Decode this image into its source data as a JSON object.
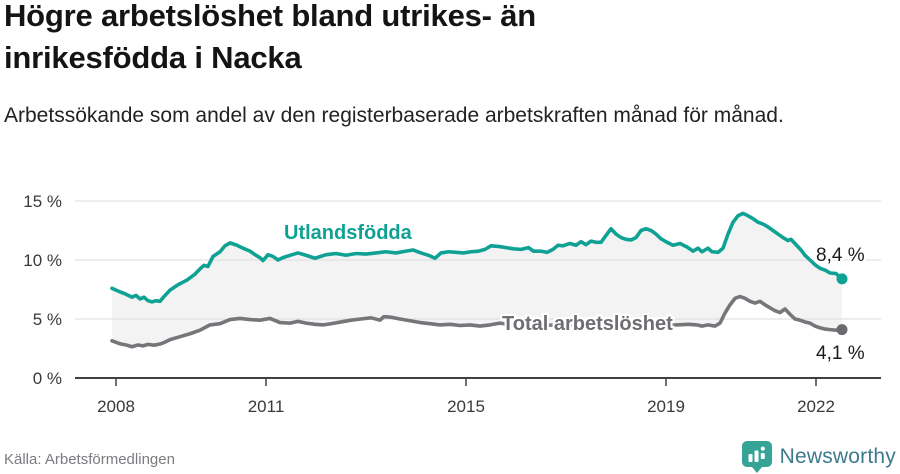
{
  "header": {
    "title_line1": "Högre arbetslöshet bland utrikes- än",
    "title_line2": "inrikesfödda i Nacka",
    "subtitle": "Arbetssökande som andel av den registerbaserade arbetskraften månad för månad."
  },
  "footer": {
    "source": "Källa: Arbetsförmedlingen",
    "brand": "Newsworthy"
  },
  "icons": {
    "logo": "newsworthy-bar-chart-pin"
  },
  "chart_data": {
    "type": "line",
    "title": "Högre arbetslöshet bland utrikes- än inrikesfödda i Nacka",
    "xlabel": "",
    "ylabel": "Arbetssökande som andel av den registerbaserade arbetskraften",
    "xlim": [
      2007.8,
      2022.75
    ],
    "ylim": [
      0,
      15
    ],
    "grid": "horizontal",
    "legend_position": "inline-labels",
    "area_fill_between_series": true,
    "yticks": [
      {
        "value": 0,
        "label": "0 %"
      },
      {
        "value": 5,
        "label": "5 %"
      },
      {
        "value": 10,
        "label": "10 %"
      },
      {
        "value": 15,
        "label": "15 %"
      }
    ],
    "xticks": [
      {
        "value": 2008,
        "label": "2008"
      },
      {
        "value": 2011,
        "label": "2011"
      },
      {
        "value": 2015,
        "label": "2015"
      },
      {
        "value": 2019,
        "label": "2019"
      },
      {
        "value": 2022,
        "label": "2022"
      }
    ],
    "colors": {
      "foreign_born_line": "#0fa294",
      "total_line": "#76767a",
      "total_dot": "#6a6a6e",
      "area": "#f3f3f3",
      "grid": "#dbdbdb",
      "axis": "#3f3f3f",
      "tick_text": "#3a3a3a"
    },
    "series": [
      {
        "name": "Utlandsfödda",
        "color": "#0fa294",
        "dot_color": "#0fa294",
        "end_label": "8,4 %",
        "end_value": 8.4,
        "points": [
          [
            2007.92,
            7.6
          ],
          [
            2008.08,
            7.3
          ],
          [
            2008.2,
            7.1
          ],
          [
            2008.32,
            6.85
          ],
          [
            2008.4,
            7.0
          ],
          [
            2008.48,
            6.7
          ],
          [
            2008.56,
            6.85
          ],
          [
            2008.64,
            6.55
          ],
          [
            2008.72,
            6.45
          ],
          [
            2008.8,
            6.55
          ],
          [
            2008.88,
            6.5
          ],
          [
            2008.96,
            6.9
          ],
          [
            2009.08,
            7.45
          ],
          [
            2009.24,
            7.9
          ],
          [
            2009.42,
            8.3
          ],
          [
            2009.58,
            8.8
          ],
          [
            2009.68,
            9.25
          ],
          [
            2009.76,
            9.55
          ],
          [
            2009.84,
            9.45
          ],
          [
            2009.94,
            10.3
          ],
          [
            2010.08,
            10.7
          ],
          [
            2010.18,
            11.2
          ],
          [
            2010.28,
            11.45
          ],
          [
            2010.42,
            11.25
          ],
          [
            2010.54,
            11.0
          ],
          [
            2010.68,
            10.75
          ],
          [
            2010.78,
            10.45
          ],
          [
            2010.88,
            10.2
          ],
          [
            2010.94,
            9.95
          ],
          [
            2011.04,
            10.45
          ],
          [
            2011.14,
            10.3
          ],
          [
            2011.24,
            10.0
          ],
          [
            2011.34,
            10.2
          ],
          [
            2011.52,
            10.45
          ],
          [
            2011.64,
            10.6
          ],
          [
            2011.8,
            10.4
          ],
          [
            2011.98,
            10.15
          ],
          [
            2012.2,
            10.45
          ],
          [
            2012.4,
            10.55
          ],
          [
            2012.6,
            10.4
          ],
          [
            2012.8,
            10.55
          ],
          [
            2013.0,
            10.5
          ],
          [
            2013.2,
            10.6
          ],
          [
            2013.4,
            10.7
          ],
          [
            2013.6,
            10.6
          ],
          [
            2013.8,
            10.75
          ],
          [
            2013.94,
            10.85
          ],
          [
            2014.1,
            10.6
          ],
          [
            2014.25,
            10.4
          ],
          [
            2014.38,
            10.15
          ],
          [
            2014.5,
            10.6
          ],
          [
            2014.65,
            10.7
          ],
          [
            2014.8,
            10.65
          ],
          [
            2014.95,
            10.6
          ],
          [
            2015.1,
            10.7
          ],
          [
            2015.25,
            10.75
          ],
          [
            2015.38,
            10.9
          ],
          [
            2015.5,
            11.2
          ],
          [
            2015.65,
            11.15
          ],
          [
            2015.8,
            11.05
          ],
          [
            2015.95,
            10.95
          ],
          [
            2016.1,
            10.9
          ],
          [
            2016.25,
            11.05
          ],
          [
            2016.35,
            10.75
          ],
          [
            2016.5,
            10.75
          ],
          [
            2016.62,
            10.65
          ],
          [
            2016.74,
            10.9
          ],
          [
            2016.84,
            11.25
          ],
          [
            2016.94,
            11.2
          ],
          [
            2017.08,
            11.4
          ],
          [
            2017.2,
            11.25
          ],
          [
            2017.3,
            11.55
          ],
          [
            2017.4,
            11.3
          ],
          [
            2017.5,
            11.6
          ],
          [
            2017.6,
            11.5
          ],
          [
            2017.7,
            11.5
          ],
          [
            2017.82,
            12.2
          ],
          [
            2017.9,
            12.65
          ],
          [
            2018.0,
            12.2
          ],
          [
            2018.1,
            11.9
          ],
          [
            2018.2,
            11.75
          ],
          [
            2018.3,
            11.7
          ],
          [
            2018.4,
            11.9
          ],
          [
            2018.5,
            12.5
          ],
          [
            2018.6,
            12.65
          ],
          [
            2018.7,
            12.5
          ],
          [
            2018.8,
            12.2
          ],
          [
            2018.9,
            11.8
          ],
          [
            2019.02,
            11.5
          ],
          [
            2019.14,
            11.25
          ],
          [
            2019.28,
            11.4
          ],
          [
            2019.42,
            11.1
          ],
          [
            2019.54,
            10.75
          ],
          [
            2019.64,
            11.0
          ],
          [
            2019.72,
            10.7
          ],
          [
            2019.84,
            11.0
          ],
          [
            2019.92,
            10.7
          ],
          [
            2020.04,
            10.65
          ],
          [
            2020.14,
            11.0
          ],
          [
            2020.24,
            12.2
          ],
          [
            2020.34,
            13.2
          ],
          [
            2020.44,
            13.75
          ],
          [
            2020.54,
            13.95
          ],
          [
            2020.64,
            13.75
          ],
          [
            2020.74,
            13.5
          ],
          [
            2020.84,
            13.2
          ],
          [
            2020.94,
            13.05
          ],
          [
            2021.04,
            12.8
          ],
          [
            2021.14,
            12.5
          ],
          [
            2021.24,
            12.2
          ],
          [
            2021.34,
            11.9
          ],
          [
            2021.44,
            11.65
          ],
          [
            2021.5,
            11.75
          ],
          [
            2021.6,
            11.3
          ],
          [
            2021.7,
            10.85
          ],
          [
            2021.78,
            10.4
          ],
          [
            2021.88,
            10.0
          ],
          [
            2021.98,
            9.6
          ],
          [
            2022.08,
            9.3
          ],
          [
            2022.18,
            9.15
          ],
          [
            2022.28,
            8.9
          ],
          [
            2022.4,
            8.85
          ],
          [
            2022.52,
            8.4
          ]
        ]
      },
      {
        "name": "Total arbetslöshet",
        "color": "#76767a",
        "dot_color": "#6a6a6e",
        "end_label": "4,1 %",
        "end_value": 4.1,
        "points": [
          [
            2007.92,
            3.15
          ],
          [
            2008.08,
            2.9
          ],
          [
            2008.2,
            2.8
          ],
          [
            2008.32,
            2.65
          ],
          [
            2008.44,
            2.8
          ],
          [
            2008.54,
            2.72
          ],
          [
            2008.64,
            2.85
          ],
          [
            2008.76,
            2.78
          ],
          [
            2008.88,
            2.88
          ],
          [
            2008.96,
            3.0
          ],
          [
            2009.08,
            3.25
          ],
          [
            2009.28,
            3.5
          ],
          [
            2009.48,
            3.75
          ],
          [
            2009.68,
            4.05
          ],
          [
            2009.88,
            4.5
          ],
          [
            2010.08,
            4.6
          ],
          [
            2010.28,
            4.95
          ],
          [
            2010.48,
            5.05
          ],
          [
            2010.68,
            4.95
          ],
          [
            2010.88,
            4.9
          ],
          [
            2011.08,
            5.05
          ],
          [
            2011.28,
            4.7
          ],
          [
            2011.48,
            4.65
          ],
          [
            2011.64,
            4.8
          ],
          [
            2011.8,
            4.65
          ],
          [
            2011.98,
            4.55
          ],
          [
            2012.15,
            4.5
          ],
          [
            2012.3,
            4.6
          ],
          [
            2012.5,
            4.75
          ],
          [
            2012.7,
            4.9
          ],
          [
            2012.9,
            5.0
          ],
          [
            2013.1,
            5.1
          ],
          [
            2013.28,
            4.9
          ],
          [
            2013.36,
            5.2
          ],
          [
            2013.5,
            5.15
          ],
          [
            2013.68,
            5.0
          ],
          [
            2013.88,
            4.85
          ],
          [
            2014.08,
            4.7
          ],
          [
            2014.28,
            4.6
          ],
          [
            2014.48,
            4.5
          ],
          [
            2014.68,
            4.55
          ],
          [
            2014.88,
            4.45
          ],
          [
            2015.08,
            4.5
          ],
          [
            2015.28,
            4.4
          ],
          [
            2015.48,
            4.5
          ],
          [
            2015.68,
            4.65
          ],
          [
            2015.9,
            4.5
          ],
          [
            2016.2,
            4.55
          ],
          [
            2016.5,
            4.45
          ],
          [
            2016.8,
            4.5
          ],
          [
            2017.1,
            4.55
          ],
          [
            2017.4,
            4.45
          ],
          [
            2017.7,
            4.5
          ],
          [
            2018.0,
            4.6
          ],
          [
            2018.3,
            4.5
          ],
          [
            2018.6,
            4.55
          ],
          [
            2018.9,
            4.45
          ],
          [
            2019.2,
            4.5
          ],
          [
            2019.45,
            4.55
          ],
          [
            2019.62,
            4.5
          ],
          [
            2019.72,
            4.4
          ],
          [
            2019.84,
            4.5
          ],
          [
            2019.98,
            4.4
          ],
          [
            2020.08,
            4.65
          ],
          [
            2020.18,
            5.5
          ],
          [
            2020.28,
            6.2
          ],
          [
            2020.38,
            6.75
          ],
          [
            2020.48,
            6.9
          ],
          [
            2020.58,
            6.75
          ],
          [
            2020.68,
            6.5
          ],
          [
            2020.78,
            6.35
          ],
          [
            2020.88,
            6.5
          ],
          [
            2020.98,
            6.2
          ],
          [
            2021.08,
            5.95
          ],
          [
            2021.18,
            5.7
          ],
          [
            2021.28,
            5.55
          ],
          [
            2021.38,
            5.85
          ],
          [
            2021.48,
            5.4
          ],
          [
            2021.58,
            5.0
          ],
          [
            2021.68,
            4.9
          ],
          [
            2021.78,
            4.75
          ],
          [
            2021.88,
            4.65
          ],
          [
            2021.98,
            4.4
          ],
          [
            2022.08,
            4.25
          ],
          [
            2022.18,
            4.15
          ],
          [
            2022.28,
            4.1
          ],
          [
            2022.4,
            4.05
          ],
          [
            2022.52,
            4.1
          ]
        ]
      }
    ]
  }
}
